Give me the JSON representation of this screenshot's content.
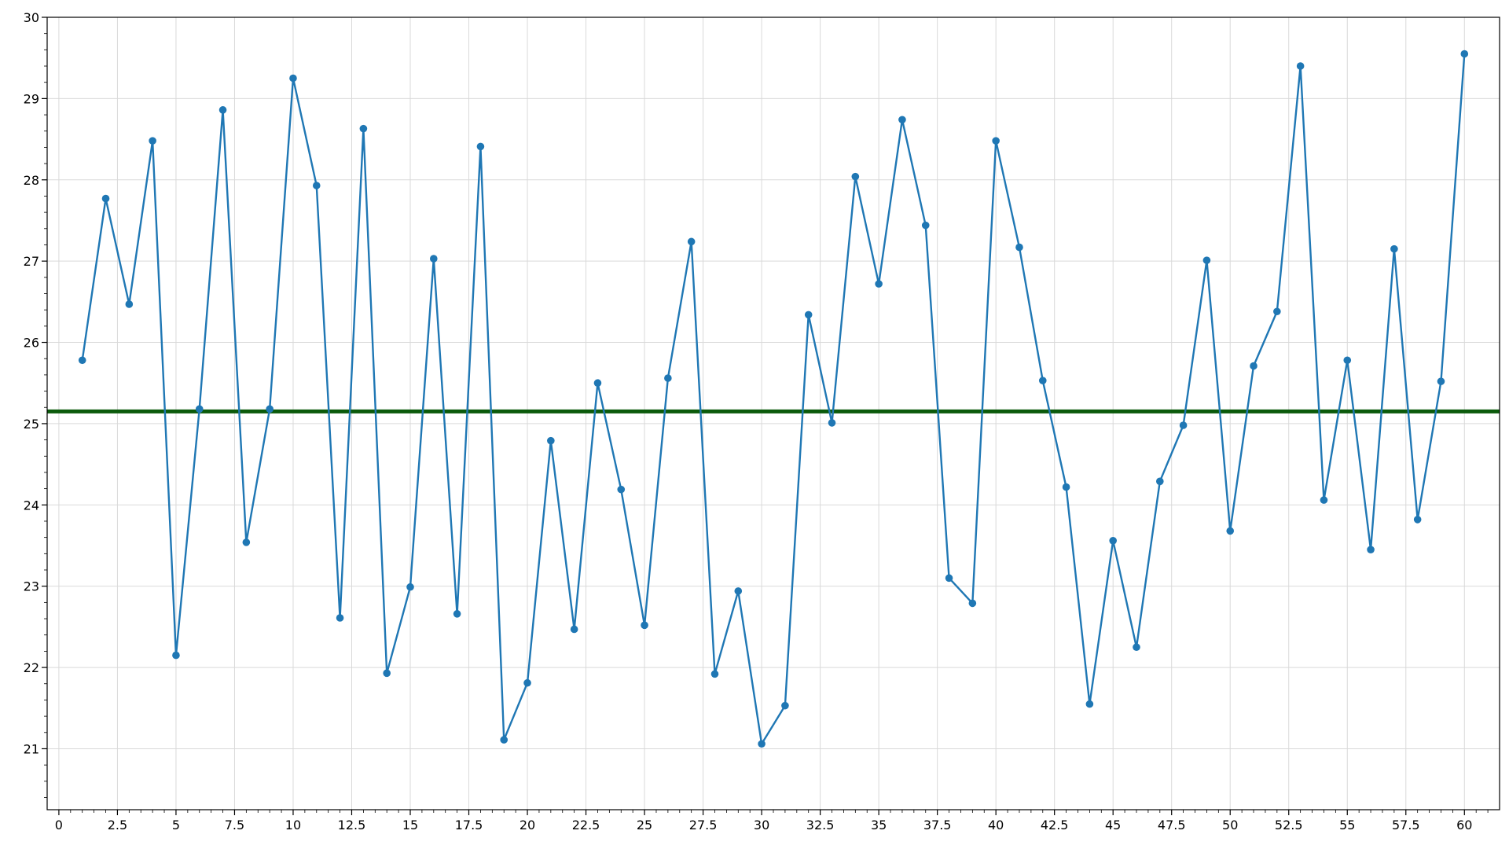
{
  "chart_data": {
    "type": "line",
    "title": "",
    "xlabel": "",
    "ylabel": "",
    "xlim": [
      -0.5,
      61.5
    ],
    "ylim": [
      20.25,
      30
    ],
    "grid": true,
    "x_ticks": [
      "0",
      "2.5",
      "5",
      "7.5",
      "10",
      "12.5",
      "15",
      "17.5",
      "20",
      "22.5",
      "25",
      "27.5",
      "30",
      "32.5",
      "35",
      "37.5",
      "40",
      "42.5",
      "45",
      "47.5",
      "50",
      "52.5",
      "55",
      "57.5",
      "60"
    ],
    "y_ticks": [
      "21",
      "22",
      "23",
      "24",
      "25",
      "26",
      "27",
      "28",
      "29",
      "30"
    ],
    "series": [
      {
        "color": "#1f77b4",
        "x": [
          1,
          2,
          3,
          4,
          5,
          6,
          7,
          8,
          9,
          10,
          11,
          12,
          13,
          14,
          15,
          16,
          17,
          18,
          19,
          20,
          21,
          22,
          23,
          24,
          25,
          26,
          27,
          28,
          29,
          30,
          31,
          32,
          33,
          34,
          35,
          36,
          37,
          38,
          39,
          40,
          41,
          42,
          43,
          44,
          45,
          46,
          47,
          48,
          49,
          50,
          51,
          52,
          53,
          54,
          55,
          56,
          57,
          58,
          59,
          60
        ],
        "values": [
          25.78,
          27.77,
          26.47,
          28.48,
          22.15,
          25.18,
          28.86,
          23.54,
          25.18,
          29.25,
          27.93,
          22.61,
          28.63,
          21.93,
          22.99,
          27.03,
          22.66,
          28.41,
          21.11,
          21.81,
          24.79,
          22.47,
          25.5,
          24.19,
          22.52,
          25.56,
          27.24,
          21.92,
          22.94,
          21.06,
          21.53,
          26.34,
          25.01,
          28.04,
          26.72,
          28.74,
          27.44,
          23.1,
          22.79,
          28.48,
          27.17,
          25.53,
          24.22,
          21.55,
          23.56,
          22.25,
          24.29,
          24.98,
          27.01,
          23.68,
          25.71,
          26.38,
          29.4,
          24.06,
          25.78,
          23.45,
          27.15,
          23.82,
          25.52,
          29.55
        ]
      }
    ],
    "reference_line": {
      "y": 25.15,
      "color": "#0b5a0b"
    }
  }
}
